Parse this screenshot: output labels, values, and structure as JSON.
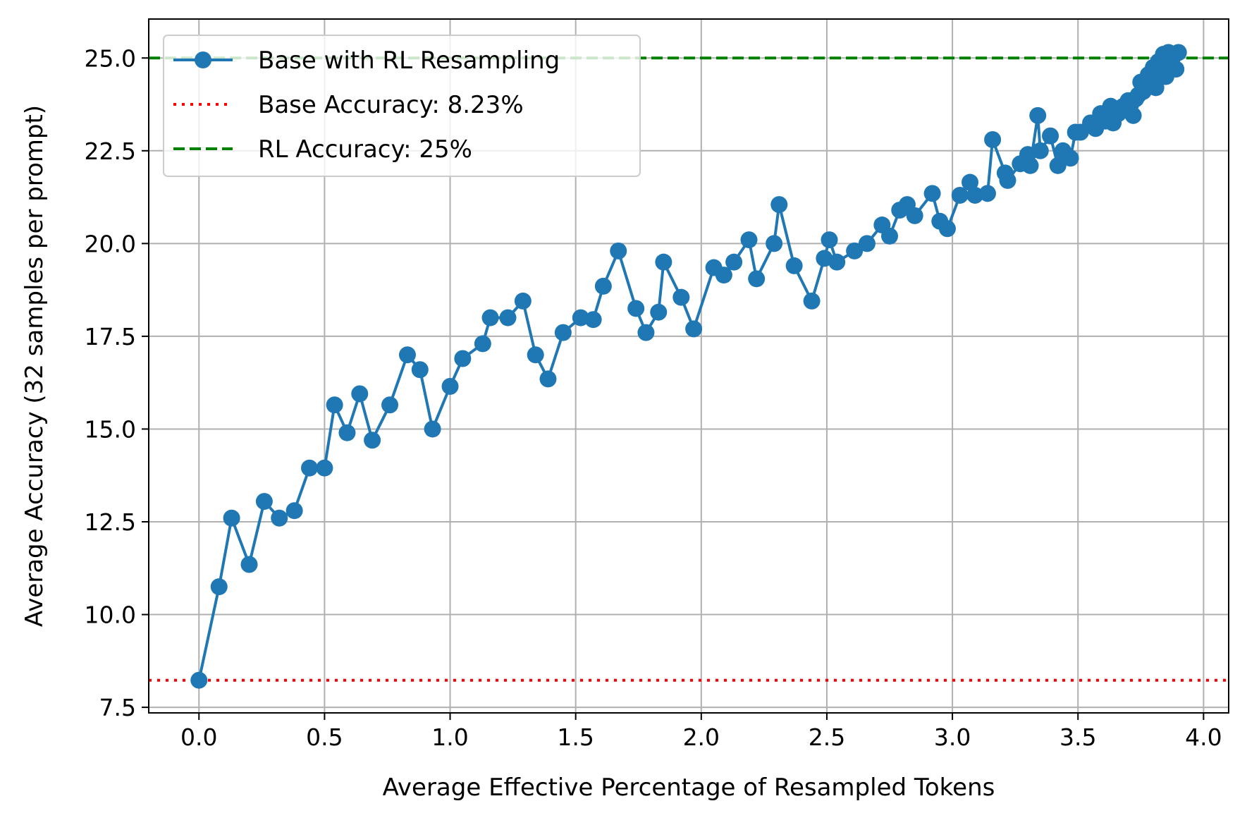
{
  "chart_data": {
    "type": "line",
    "title": "",
    "xlabel": "Average Effective Percentage of Resampled Tokens",
    "ylabel": "Average Accuracy (32 samples per prompt)",
    "xlim": [
      -0.2,
      4.1
    ],
    "ylim": [
      7.35,
      26.05
    ],
    "grid": true,
    "xticks": [
      0.0,
      0.5,
      1.0,
      1.5,
      2.0,
      2.5,
      3.0,
      3.5,
      4.0
    ],
    "xtick_labels": [
      "0.0",
      "0.5",
      "1.0",
      "1.5",
      "2.0",
      "2.5",
      "3.0",
      "3.5",
      "4.0"
    ],
    "yticks": [
      7.5,
      10.0,
      12.5,
      15.0,
      17.5,
      20.0,
      22.5,
      25.0
    ],
    "ytick_labels": [
      "7.5",
      "10.0",
      "12.5",
      "15.0",
      "17.5",
      "20.0",
      "22.5",
      "25.0"
    ],
    "legend_position": "top-left",
    "series": [
      {
        "name": "Base with RL Resampling",
        "color": "#1f77b4",
        "marker": "circle",
        "x": [
          0.0,
          0.08,
          0.13,
          0.2,
          0.26,
          0.32,
          0.38,
          0.44,
          0.5,
          0.54,
          0.59,
          0.64,
          0.69,
          0.76,
          0.83,
          0.88,
          0.93,
          1.0,
          1.05,
          1.13,
          1.16,
          1.23,
          1.29,
          1.34,
          1.39,
          1.45,
          1.52,
          1.57,
          1.61,
          1.67,
          1.74,
          1.78,
          1.83,
          1.85,
          1.92,
          1.97,
          2.05,
          2.09,
          2.13,
          2.19,
          2.22,
          2.29,
          2.31,
          2.37,
          2.44,
          2.49,
          2.51,
          2.54,
          2.61,
          2.66,
          2.72,
          2.75,
          2.79,
          2.82,
          2.85,
          2.92,
          2.95,
          2.98,
          3.03,
          3.07,
          3.09,
          3.14,
          3.16,
          3.21,
          3.22,
          3.27,
          3.3,
          3.31,
          3.34,
          3.35,
          3.39,
          3.42,
          3.44,
          3.47,
          3.49,
          3.51,
          3.55,
          3.57,
          3.59,
          3.61,
          3.63,
          3.64,
          3.66,
          3.68,
          3.7,
          3.71,
          3.72,
          3.73,
          3.74,
          3.75,
          3.76,
          3.77,
          3.78,
          3.79,
          3.8,
          3.81,
          3.82,
          3.83,
          3.84,
          3.85,
          3.86,
          3.87,
          3.88,
          3.89,
          3.9
        ],
        "values": [
          8.23,
          10.75,
          12.6,
          11.35,
          13.05,
          12.6,
          12.8,
          13.95,
          13.95,
          15.65,
          14.9,
          15.95,
          14.7,
          15.65,
          17.0,
          16.6,
          15.0,
          16.15,
          16.9,
          17.3,
          18.0,
          18.0,
          18.45,
          17.0,
          16.35,
          17.6,
          18.0,
          17.95,
          18.85,
          19.8,
          18.25,
          17.6,
          18.15,
          19.5,
          18.55,
          17.7,
          19.35,
          19.15,
          19.5,
          20.1,
          19.05,
          20.0,
          21.05,
          19.4,
          18.45,
          19.6,
          20.1,
          19.5,
          19.8,
          20.0,
          20.5,
          20.2,
          20.9,
          21.05,
          20.75,
          21.35,
          20.6,
          20.4,
          21.3,
          21.65,
          21.3,
          21.35,
          22.8,
          21.9,
          21.7,
          22.15,
          22.4,
          22.1,
          23.45,
          22.5,
          22.9,
          22.1,
          22.5,
          22.3,
          23.0,
          23.0,
          23.25,
          23.1,
          23.5,
          23.3,
          23.7,
          23.25,
          23.5,
          23.7,
          23.85,
          23.75,
          23.45,
          23.9,
          24.0,
          24.35,
          24.1,
          24.4,
          24.55,
          24.3,
          24.75,
          24.2,
          24.9,
          24.6,
          25.1,
          24.5,
          25.15,
          24.8,
          25.05,
          24.7,
          25.15
        ]
      }
    ],
    "reference_lines": [
      {
        "name": "Base Accuracy: 8.23%",
        "value": 8.23,
        "color": "#ff0000",
        "style": "dotted"
      },
      {
        "name": "RL Accuracy: 25%",
        "value": 25.0,
        "color": "#008000",
        "style": "dashed"
      }
    ]
  }
}
